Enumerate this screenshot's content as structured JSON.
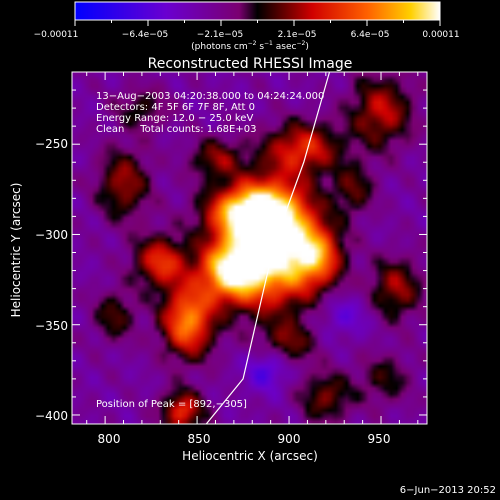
{
  "chart_data": {
    "type": "heatmap",
    "title": "Reconstructed RHESSI Image",
    "xlabel": "Heliocentric X (arcsec)",
    "ylabel": "Heliocentric Y (arcsec)",
    "xlim": [
      782,
      975
    ],
    "ylim": [
      -405,
      -210
    ],
    "xticks": [
      800,
      850,
      900,
      950
    ],
    "yticks": [
      -250,
      -300,
      -350,
      -400
    ],
    "xtick_labels": [
      "800",
      "850",
      "900",
      "950"
    ],
    "ytick_labels": [
      "−250",
      "−300",
      "−350",
      "−400"
    ],
    "colorbar": {
      "min": -0.00011,
      "max": 0.00011,
      "ticks": [
        "−0.00011",
        "−6.4e−05",
        "−2.1e−05",
        "2.1e−05",
        "6.4e−05",
        "0.00011"
      ],
      "unit_parts": [
        "(photons cm",
        "−2",
        " s",
        "−1",
        " asec",
        "−2",
        ")"
      ]
    },
    "info_lines": [
      "13−Aug−2003 04:20:38.000 to 04:24:24.000",
      "Detectors: 4F 5F 6F 7F 8F, Att 0",
      "Energy Range: 12.0 − 25.0 keV",
      "Clean     Total counts: 1.68E+03"
    ],
    "peak_label": "Position of Peak = [892,−305]",
    "peak": [
      892,
      -305
    ],
    "limb_curve": [
      [
        855,
        -405
      ],
      [
        875,
        -380
      ],
      [
        892,
        -305
      ],
      [
        908,
        -260
      ],
      [
        922,
        -210
      ]
    ],
    "blobs": [
      {
        "x": 892,
        "y": -305,
        "sx": 16,
        "sy": 24,
        "amp": 1.0
      },
      {
        "x": 868,
        "y": -320,
        "sx": 12,
        "sy": 12,
        "amp": 0.9
      },
      {
        "x": 878,
        "y": -288,
        "sx": 16,
        "sy": 10,
        "amp": 0.85
      },
      {
        "x": 845,
        "y": -348,
        "sx": 10,
        "sy": 14,
        "amp": 0.75
      },
      {
        "x": 915,
        "y": -312,
        "sx": 10,
        "sy": 12,
        "amp": 0.6
      },
      {
        "x": 830,
        "y": -315,
        "sx": 10,
        "sy": 10,
        "amp": 0.55
      },
      {
        "x": 908,
        "y": -252,
        "sx": 14,
        "sy": 10,
        "amp": 0.5
      },
      {
        "x": 950,
        "y": -232,
        "sx": 12,
        "sy": 14,
        "amp": 0.45
      },
      {
        "x": 810,
        "y": -272,
        "sx": 10,
        "sy": 14,
        "amp": 0.4
      },
      {
        "x": 958,
        "y": -330,
        "sx": 10,
        "sy": 12,
        "amp": 0.4
      },
      {
        "x": 842,
        "y": -398,
        "sx": 8,
        "sy": 8,
        "amp": 0.55
      },
      {
        "x": 920,
        "y": -390,
        "sx": 10,
        "sy": 10,
        "amp": 0.35
      },
      {
        "x": 860,
        "y": -258,
        "sx": 10,
        "sy": 8,
        "amp": 0.35
      },
      {
        "x": 900,
        "y": -360,
        "sx": 10,
        "sy": 8,
        "amp": 0.3
      },
      {
        "x": 805,
        "y": -345,
        "sx": 8,
        "sy": 10,
        "amp": 0.3
      },
      {
        "x": 935,
        "y": -275,
        "sx": 8,
        "sy": 10,
        "amp": 0.3
      },
      {
        "x": 820,
        "y": -230,
        "sx": 10,
        "sy": 8,
        "amp": 0.25
      },
      {
        "x": 952,
        "y": -380,
        "sx": 10,
        "sy": 10,
        "amp": 0.25
      },
      {
        "x": 888,
        "y": -375,
        "sx": 8,
        "sy": 8,
        "amp": -0.3
      },
      {
        "x": 930,
        "y": -345,
        "sx": 10,
        "sy": 8,
        "amp": -0.2
      }
    ]
  },
  "footer": {
    "timestamp": "6−Jun−2013 20:52"
  }
}
